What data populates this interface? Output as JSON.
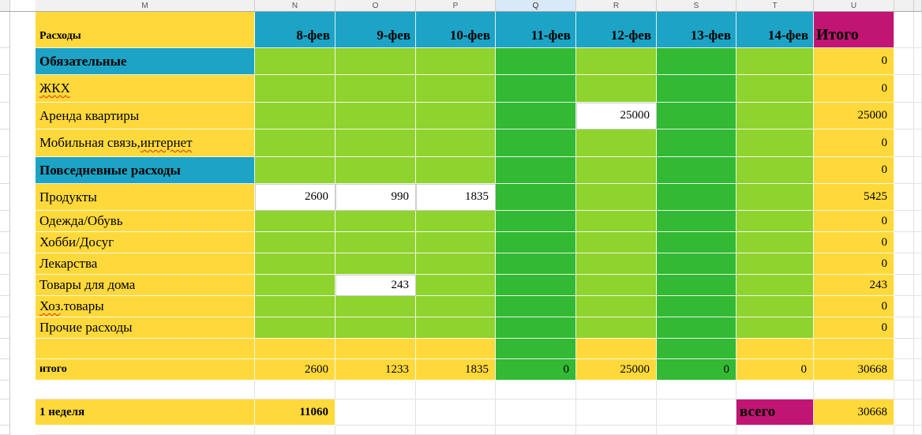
{
  "colors": {
    "yellow": "#FFD93B",
    "light_green": "#8FD32E",
    "dark_green": "#33B933",
    "teal": "#1CA3C6",
    "magenta": "#C01572",
    "selected_header": "#D8E9F8"
  },
  "column_headers": {
    "letters": [
      "M",
      "N",
      "O",
      "P",
      "Q",
      "R",
      "S",
      "T",
      "U"
    ],
    "selected": "Q"
  },
  "header_row": {
    "expenses_label": "Расходы",
    "dates": [
      "8-фев",
      "9-фев",
      "10-фев",
      "11-фев",
      "12-фев",
      "13-фев",
      "14-фев"
    ],
    "total_label": "Итого"
  },
  "rows": [
    {
      "label": "Обязательные",
      "total": "0"
    },
    {
      "label_sq": "ЖКХ",
      "total": "0"
    },
    {
      "label": "Аренда квартиры",
      "values": {
        "r": "25000"
      },
      "total": "25000"
    },
    {
      "label_pre": "Мобильная связь, ",
      "label_sq": "интернет",
      "total": "0"
    },
    {
      "label": "Повседневные расходы",
      "total": "0"
    },
    {
      "label": "Продукты",
      "values": {
        "n": "2600",
        "o": "990",
        "p": "1835"
      },
      "total": "5425"
    },
    {
      "label": "Одежда/Обувь",
      "total": "0"
    },
    {
      "label": "Хобби/Досуг",
      "total": "0"
    },
    {
      "label": "Лекарства",
      "total": "0"
    },
    {
      "label": "Товары для дома",
      "values": {
        "o": "243"
      },
      "total": "243"
    },
    {
      "label_sq": "Хоз",
      "label_post": ".товары",
      "total": "0"
    },
    {
      "label": "Прочие расходы",
      "total": "0"
    }
  ],
  "totals_row": {
    "label": "итого",
    "n": "2600",
    "o": "1233",
    "p": "1835",
    "q": "0",
    "r": "25000",
    "s": "0",
    "t": "0",
    "u": "30668"
  },
  "week_row": {
    "label": "1 неделя",
    "value": "11060",
    "vsego_label": "всего",
    "vsego_value": "30668"
  }
}
